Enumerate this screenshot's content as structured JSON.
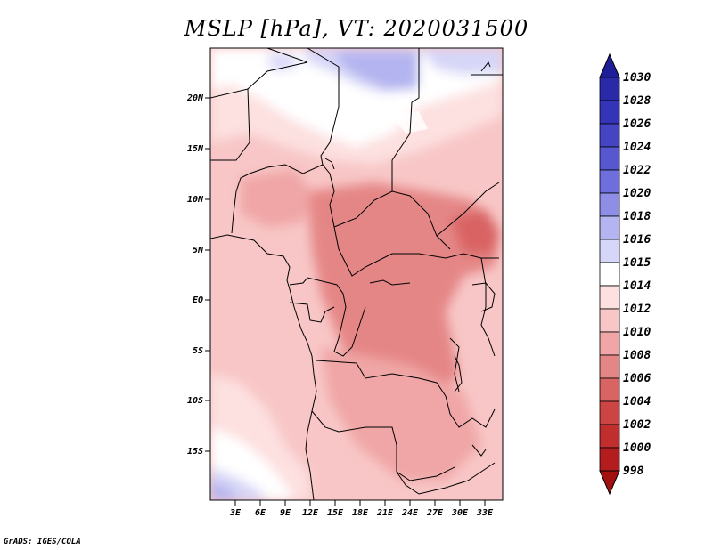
{
  "title": "MSLP [hPa], VT: 2020031500",
  "credit": "GrADS: IGES/COLA",
  "map": {
    "lat_ticks": [
      "20N",
      "15N",
      "10N",
      "5N",
      "EQ",
      "5S",
      "10S",
      "15S"
    ],
    "lon_ticks": [
      "3E",
      "6E",
      "9E",
      "12E",
      "15E",
      "18E",
      "21E",
      "24E",
      "27E",
      "30E",
      "33E"
    ]
  },
  "colorbar": {
    "levels": [
      "1030",
      "1028",
      "1026",
      "1024",
      "1022",
      "1020",
      "1018",
      "1016",
      "1015",
      "1014",
      "1012",
      "1010",
      "1008",
      "1006",
      "1004",
      "1002",
      "1000",
      "998"
    ],
    "colors": [
      "#1f1e99",
      "#2a2aa9",
      "#3434b8",
      "#4545c4",
      "#5757d0",
      "#6e6edc",
      "#8e8ee6",
      "#b4b4f0",
      "#d6d6f8",
      "#ffffff",
      "#fde0e0",
      "#f8c6c6",
      "#f0a6a6",
      "#e58686",
      "#d96464",
      "#cc4444",
      "#c12e2e",
      "#b31d1d",
      "#a31010"
    ]
  }
}
